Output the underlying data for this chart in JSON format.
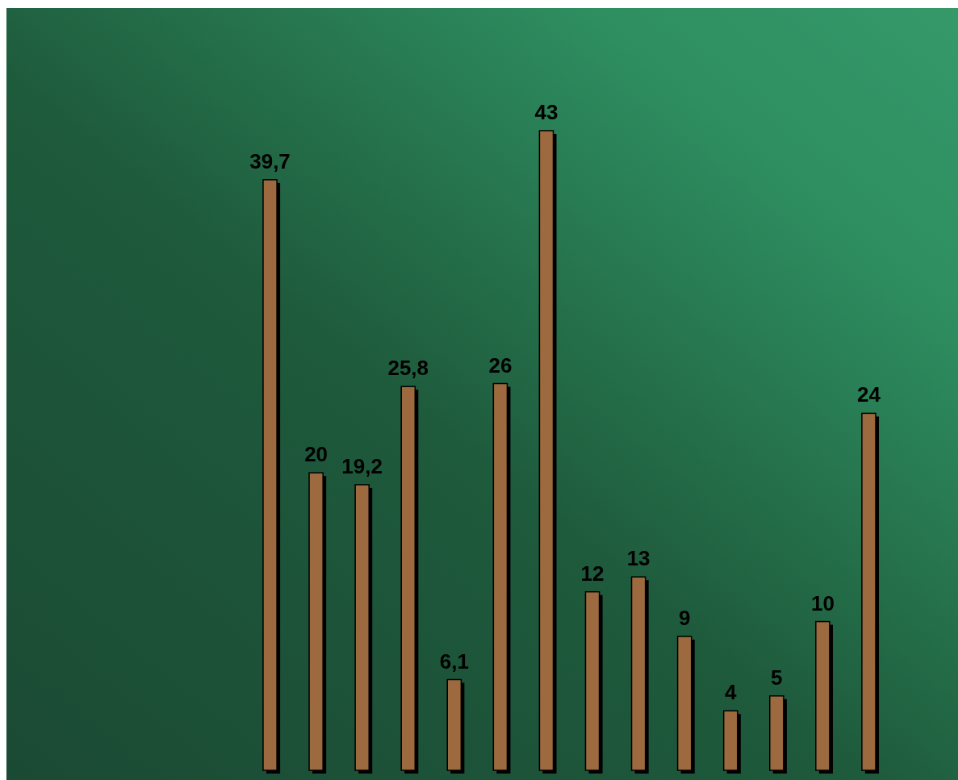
{
  "chart_data": {
    "type": "bar",
    "categories": [
      null,
      null,
      null,
      null,
      null,
      null,
      null,
      null,
      null,
      null,
      null,
      null,
      null,
      null
    ],
    "values": [
      39.7,
      20,
      19.2,
      25.8,
      6.1,
      26,
      43,
      12,
      13,
      9,
      4,
      5,
      10,
      24
    ],
    "value_labels": [
      "39,7",
      "20",
      "19,2",
      "25,8",
      "6,1",
      "26",
      "43",
      "12",
      "13",
      "9",
      "4",
      "5",
      "10",
      "24"
    ],
    "color": "#9c6a3e"
  }
}
